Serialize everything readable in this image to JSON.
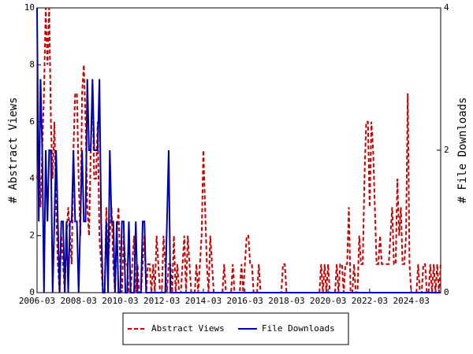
{
  "chart_data": {
    "type": "line",
    "x": [
      "2006-03",
      "2006-04",
      "2006-05",
      "2006-06",
      "2006-07",
      "2006-08",
      "2006-09",
      "2006-10",
      "2006-11",
      "2006-12",
      "2007-01",
      "2007-02",
      "2007-03",
      "2007-04",
      "2007-05",
      "2007-06",
      "2007-07",
      "2007-08",
      "2007-09",
      "2007-10",
      "2007-11",
      "2007-12",
      "2008-01",
      "2008-02",
      "2008-03",
      "2008-04",
      "2008-05",
      "2008-06",
      "2008-07",
      "2008-08",
      "2008-09",
      "2008-10",
      "2008-11",
      "2008-12",
      "2009-01",
      "2009-02",
      "2009-03",
      "2009-04",
      "2009-05",
      "2009-06",
      "2009-07",
      "2009-08",
      "2009-09",
      "2009-10",
      "2009-11",
      "2009-12",
      "2010-01",
      "2010-02",
      "2010-03",
      "2010-04",
      "2010-05",
      "2010-06",
      "2010-07",
      "2010-08",
      "2010-09",
      "2010-10",
      "2010-11",
      "2010-12",
      "2011-01",
      "2011-02",
      "2011-03",
      "2011-04",
      "2011-05",
      "2011-06",
      "2011-07",
      "2011-08",
      "2011-09",
      "2011-10",
      "2011-11",
      "2011-12",
      "2012-01",
      "2012-02",
      "2012-03",
      "2012-04",
      "2012-05",
      "2012-06",
      "2012-07",
      "2012-08",
      "2012-09",
      "2012-10",
      "2012-11",
      "2012-12",
      "2013-01",
      "2013-02",
      "2013-03",
      "2013-04",
      "2013-05",
      "2013-06",
      "2013-07",
      "2013-08",
      "2013-09",
      "2013-10",
      "2013-11",
      "2013-12",
      "2014-01",
      "2014-02",
      "2014-03",
      "2014-04",
      "2014-05",
      "2014-06",
      "2014-07",
      "2014-08",
      "2014-09",
      "2014-10",
      "2014-11",
      "2014-12",
      "2015-01",
      "2015-02",
      "2015-03",
      "2015-04",
      "2015-05",
      "2015-06",
      "2015-07",
      "2015-08",
      "2015-09",
      "2015-10",
      "2015-11",
      "2015-12",
      "2016-01",
      "2016-02",
      "2016-03",
      "2016-04",
      "2016-05",
      "2016-06",
      "2016-07",
      "2016-08",
      "2016-09",
      "2016-10",
      "2016-11",
      "2016-12",
      "2017-01",
      "2017-02",
      "2017-03",
      "2017-04",
      "2017-05",
      "2017-06",
      "2017-07",
      "2017-08",
      "2017-09",
      "2017-10",
      "2017-11",
      "2017-12",
      "2018-01",
      "2018-02",
      "2018-03",
      "2018-04",
      "2018-05",
      "2018-06",
      "2018-07",
      "2018-08",
      "2018-09",
      "2018-10",
      "2018-11",
      "2018-12",
      "2019-01",
      "2019-02",
      "2019-03",
      "2019-04",
      "2019-05",
      "2019-06",
      "2019-07",
      "2019-08",
      "2019-09",
      "2019-10",
      "2019-11",
      "2019-12",
      "2020-01",
      "2020-02",
      "2020-03",
      "2020-04",
      "2020-05",
      "2020-06",
      "2020-07",
      "2020-08",
      "2020-09",
      "2020-10",
      "2020-11",
      "2020-12",
      "2021-01",
      "2021-02",
      "2021-03",
      "2021-04",
      "2021-05",
      "2021-06",
      "2021-07",
      "2021-08",
      "2021-09",
      "2021-10",
      "2021-11",
      "2021-12",
      "2022-01",
      "2022-02",
      "2022-03",
      "2022-04",
      "2022-05",
      "2022-06",
      "2022-07",
      "2022-08",
      "2022-09",
      "2022-10",
      "2022-11",
      "2022-12",
      "2023-01",
      "2023-02",
      "2023-03",
      "2023-04",
      "2023-05",
      "2023-06",
      "2023-07",
      "2023-08",
      "2023-09",
      "2023-10",
      "2023-11",
      "2023-12",
      "2024-01",
      "2024-02",
      "2024-03",
      "2024-04",
      "2024-05",
      "2024-06",
      "2024-07",
      "2024-08",
      "2024-09",
      "2024-10",
      "2024-11",
      "2024-12",
      "2025-01",
      "2025-02",
      "2025-03",
      "2025-04",
      "2025-05",
      "2025-06",
      "2025-07",
      "2025-08"
    ],
    "xlim": [
      "2006-03",
      "2025-08"
    ],
    "xticks": [
      "2006-03",
      "2008-03",
      "2010-03",
      "2012-03",
      "2014-03",
      "2016-03",
      "2018-03",
      "2020-03",
      "2022-03",
      "2024-03"
    ],
    "y_label": "# Abstract Views",
    "y2_label": "# File Downloads",
    "ylim": [
      0,
      10
    ],
    "yticks": [
      0,
      2,
      4,
      6,
      8,
      10
    ],
    "y2lim": [
      0,
      4
    ],
    "y2ticks": [
      0,
      2,
      4
    ],
    "series": [
      {
        "name": "Abstract Views",
        "color": "#cc0000",
        "dashed": true,
        "values": [
          4,
          5,
          3,
          5,
          7,
          10,
          8,
          10,
          6,
          4,
          6,
          3,
          1,
          0,
          2,
          1,
          0,
          2,
          3,
          2,
          1,
          5,
          7,
          7,
          4,
          2,
          7,
          8,
          6,
          3,
          2,
          5,
          7,
          4,
          4,
          6,
          2,
          1,
          0,
          0,
          3,
          1,
          2,
          3,
          1,
          0,
          2,
          3,
          1,
          0,
          2,
          1,
          1,
          0,
          0,
          1,
          2,
          0,
          1,
          0,
          0,
          1,
          2,
          0,
          1,
          1,
          0,
          1,
          0,
          2,
          1,
          0,
          0,
          2,
          1,
          0,
          1,
          1,
          0,
          2,
          0,
          1,
          0,
          0,
          1,
          2,
          0,
          2,
          1,
          0,
          0,
          0,
          1,
          0,
          1,
          2,
          5,
          3,
          1,
          0,
          2,
          1,
          0,
          0,
          0,
          0,
          0,
          0,
          1,
          0,
          0,
          0,
          0,
          1,
          0,
          0,
          0,
          0,
          1,
          0,
          1,
          2,
          2,
          1,
          1,
          0,
          0,
          0,
          1,
          0,
          0,
          0,
          0,
          0,
          0,
          0,
          0,
          0,
          0,
          0,
          0,
          0,
          1,
          1,
          0,
          0,
          0,
          0,
          0,
          0,
          0,
          0,
          0,
          0,
          0,
          0,
          0,
          0,
          0,
          0,
          0,
          0,
          0,
          0,
          1,
          0,
          1,
          0,
          1,
          0,
          0,
          0,
          0,
          1,
          0,
          1,
          1,
          0,
          1,
          1,
          3,
          0,
          0,
          1,
          0,
          0,
          2,
          1,
          1,
          4,
          6,
          6,
          3,
          6,
          5,
          3,
          1,
          1,
          2,
          1,
          1,
          1,
          1,
          1,
          2,
          3,
          1,
          1,
          4,
          2,
          3,
          1,
          1,
          2,
          7,
          1,
          0,
          0,
          0,
          0,
          1,
          0,
          0,
          1,
          1,
          0,
          0,
          1,
          0,
          1,
          0,
          1,
          0,
          1
        ]
      },
      {
        "name": "File Downloads",
        "color": "#0000aa",
        "axis": "y2",
        "values": [
          4,
          1,
          3,
          2,
          0,
          2,
          1,
          2,
          2,
          0,
          1,
          2,
          1,
          0,
          1,
          1,
          0,
          1,
          0,
          1,
          1,
          2,
          1,
          1,
          0,
          1,
          2,
          1,
          1,
          3,
          2,
          2,
          3,
          2,
          2,
          2,
          3,
          1,
          0,
          0,
          1,
          0,
          2,
          1,
          1,
          0,
          1,
          0,
          0,
          1,
          1,
          0,
          0,
          1,
          0,
          0,
          0,
          1,
          0,
          0,
          0,
          1,
          1,
          0,
          0,
          0,
          0,
          0,
          0,
          0,
          0,
          0,
          0,
          0,
          0,
          1,
          2,
          0,
          0,
          0,
          0,
          0,
          0,
          0,
          0,
          0,
          0,
          0,
          0,
          0,
          0,
          0,
          0,
          0,
          0,
          0,
          0,
          0,
          0,
          0,
          0,
          0,
          0,
          0,
          0,
          0,
          0,
          0,
          0,
          0,
          0,
          0,
          0,
          0,
          0,
          0,
          0,
          0,
          0,
          0,
          0,
          0,
          0,
          0,
          0,
          0,
          0,
          0,
          0,
          0,
          0,
          0,
          0,
          0,
          0,
          0,
          0,
          0,
          0,
          0,
          0,
          0,
          0,
          0,
          0,
          0,
          0,
          0,
          0,
          0,
          0,
          0,
          0,
          0,
          0,
          0,
          0,
          0,
          0,
          0,
          0,
          0,
          0,
          0,
          0,
          0,
          0,
          0,
          0,
          0,
          0,
          0,
          0,
          0,
          0,
          0,
          0,
          0,
          0,
          0,
          0,
          0,
          0,
          0,
          0,
          0,
          0,
          0,
          0,
          0,
          0,
          0,
          0,
          0,
          0,
          0,
          0,
          0,
          0,
          0,
          0,
          0,
          0,
          0,
          0,
          0,
          0,
          0,
          0,
          0,
          0,
          0,
          0,
          0,
          0,
          0,
          0,
          0,
          0,
          0,
          0,
          0,
          0,
          0,
          0,
          0,
          0,
          0,
          0,
          0,
          0,
          0,
          0,
          0
        ]
      }
    ]
  }
}
